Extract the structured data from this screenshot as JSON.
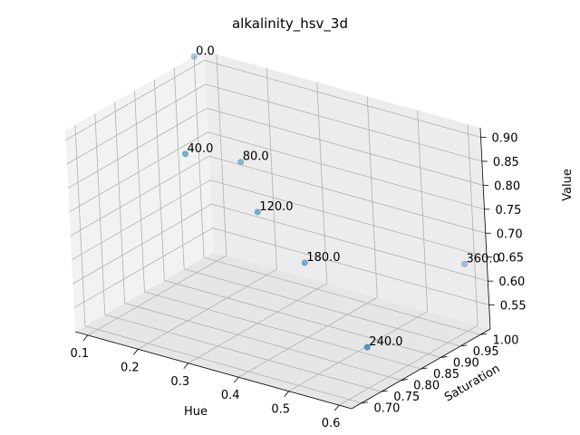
{
  "chart_data": {
    "type": "scatter",
    "projection": "3d",
    "title": "alkalinity_hsv_3d",
    "xlabel": "Hue",
    "ylabel": "Saturation",
    "zlabel": "Value",
    "xlim": [
      0.075,
      0.625
    ],
    "ylim": [
      0.675,
      1.025
    ],
    "zlim": [
      0.5,
      0.92
    ],
    "xticks": [
      "0.1",
      "0.2",
      "0.3",
      "0.4",
      "0.5",
      "0.6"
    ],
    "yticks": [
      "0.70",
      "0.75",
      "0.80",
      "0.85",
      "0.90",
      "0.95",
      "1.00"
    ],
    "zticks": [
      "0.55",
      "0.60",
      "0.65",
      "0.70",
      "0.75",
      "0.80",
      "0.85",
      "0.90"
    ],
    "grid": true,
    "color": "#1f77b4",
    "points": [
      {
        "label": "0.0",
        "x": 0.075,
        "y": 1.0,
        "z": 0.92
      },
      {
        "label": "40.0",
        "x": 0.13,
        "y": 0.9,
        "z": 0.78
      },
      {
        "label": "80.0",
        "x": 0.2,
        "y": 0.95,
        "z": 0.76
      },
      {
        "label": "120.0",
        "x": 0.27,
        "y": 0.9,
        "z": 0.7
      },
      {
        "label": "180.0",
        "x": 0.36,
        "y": 0.9,
        "z": 0.62
      },
      {
        "label": "240.0",
        "x": 0.56,
        "y": 0.8,
        "z": 0.55
      },
      {
        "label": "360.0",
        "x": 0.6,
        "y": 1.0,
        "z": 0.64
      }
    ]
  }
}
